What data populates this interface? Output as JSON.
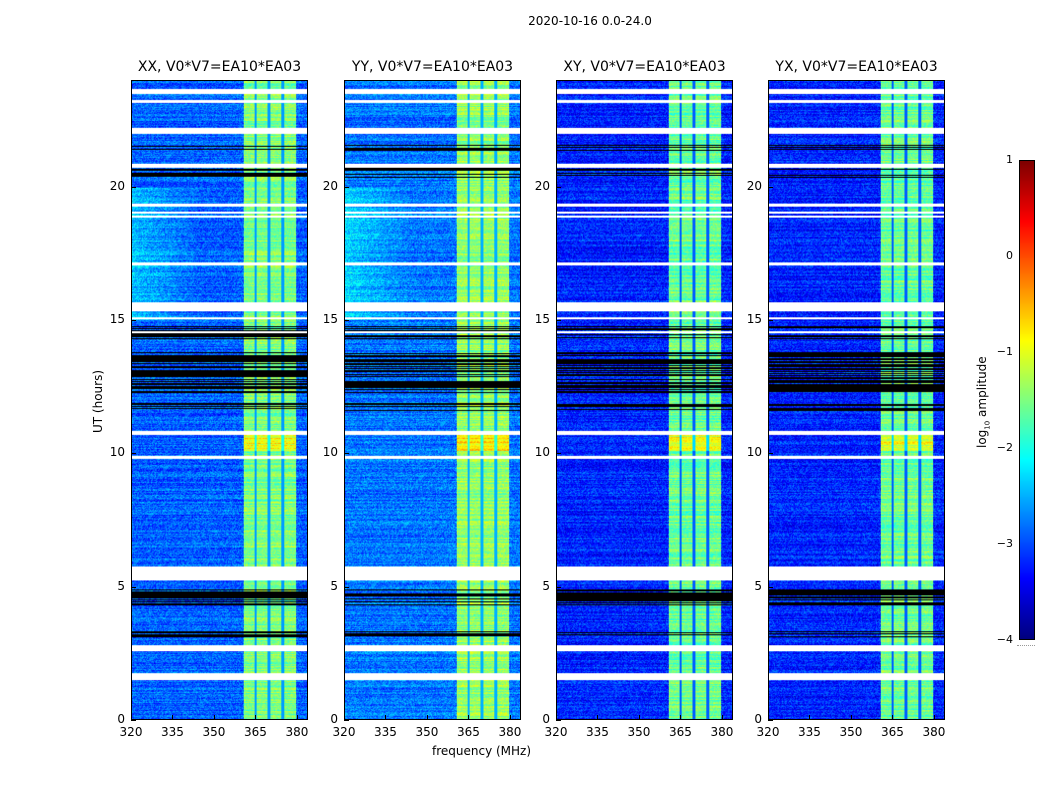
{
  "chart_data": {
    "type": "heatmap",
    "title": "2020-10-16 0.0-24.0",
    "xlabel": "frequency (MHz)",
    "ylabel": "UT (hours)",
    "xlim": [
      320,
      384
    ],
    "ylim": [
      0,
      24
    ],
    "xticks": [
      320,
      335,
      350,
      365,
      380
    ],
    "yticks": [
      0,
      5,
      10,
      15,
      20
    ],
    "panels": [
      {
        "title": "XX, V0*V7=EA10*EA03",
        "background_level": -2.9,
        "band_level": -1.5
      },
      {
        "title": "YY, V0*V7=EA10*EA03",
        "background_level": -2.8,
        "band_level": -1.4
      },
      {
        "title": "XY, V0*V7=EA10*EA03",
        "background_level": -3.2,
        "band_level": -1.6
      },
      {
        "title": "YX, V0*V7=EA10*EA03",
        "background_level": -3.2,
        "band_level": -1.6
      }
    ],
    "bright_band_mhz": [
      360.5,
      380
    ],
    "band_gaps_mhz": [
      365,
      370,
      375
    ],
    "flagged_hours_white": [
      [
        23.55,
        23.7
      ],
      [
        23.2,
        23.3
      ],
      [
        22.05,
        22.25
      ],
      [
        20.75,
        20.9
      ],
      [
        19.3,
        19.4
      ],
      [
        19.05,
        19.12
      ],
      [
        18.9,
        18.97
      ],
      [
        17.1,
        17.18
      ],
      [
        15.35,
        15.7
      ],
      [
        15.05,
        15.12
      ],
      [
        14.55,
        14.62
      ],
      [
        10.7,
        10.85
      ],
      [
        9.8,
        9.9
      ],
      [
        5.25,
        5.75
      ],
      [
        2.55,
        2.8
      ],
      [
        1.5,
        1.75
      ]
    ],
    "flagged_hours_black": [
      [
        20.4,
        20.75
      ],
      [
        21.4,
        21.6
      ],
      [
        14.3,
        14.8
      ],
      [
        12.3,
        13.8
      ],
      [
        11.6,
        11.9
      ],
      [
        5.5,
        5.65
      ],
      [
        4.3,
        4.9
      ],
      [
        3.1,
        3.3
      ]
    ],
    "colorbar": {
      "label": "log10 amplitude",
      "label_main": "log",
      "label_sub": "10",
      "label_rest": " amplitude",
      "range": [
        -4,
        1
      ],
      "ticks": [
        "1",
        "0",
        "−1",
        "−2",
        "−3",
        "−4"
      ],
      "colormap": "jet"
    }
  }
}
